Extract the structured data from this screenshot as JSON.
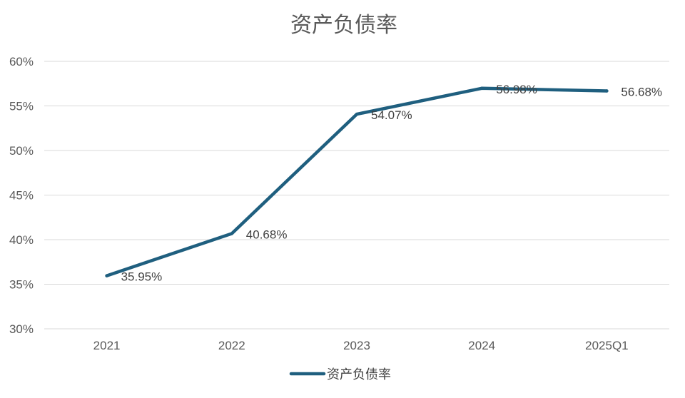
{
  "chart_data": {
    "type": "line",
    "title": "资产负债率",
    "categories": [
      "2021",
      "2022",
      "2023",
      "2024",
      "2025Q1"
    ],
    "series": [
      {
        "name": "资产负债率",
        "values": [
          35.95,
          40.68,
          54.07,
          56.98,
          56.68
        ],
        "labels": [
          "35.95%",
          "40.68%",
          "54.07%",
          "56.98%",
          "56.68%"
        ],
        "color": "#1f5f7f"
      }
    ],
    "ylim": [
      30,
      60
    ],
    "yticks": [
      30,
      35,
      40,
      45,
      50,
      55,
      60
    ],
    "ytick_labels": [
      "30%",
      "35%",
      "40%",
      "45%",
      "50%",
      "55%",
      "60%"
    ],
    "grid": true,
    "legend_position": "bottom"
  }
}
